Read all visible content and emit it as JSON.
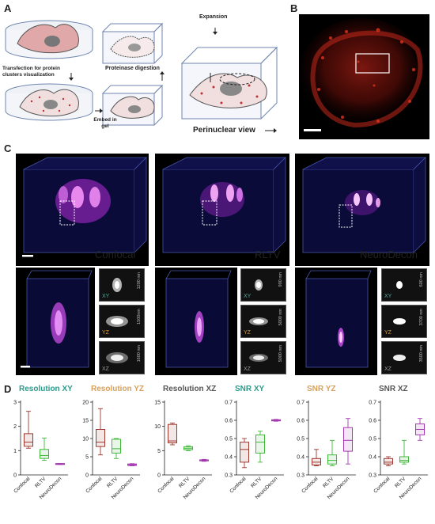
{
  "panel_a": {
    "letter": "A",
    "transfection_label": "Transfection for protein clusters visualization",
    "proteinase_label": "Proteinase digestion",
    "embed_label": "Embed in gel",
    "expansion_label": "Expansion",
    "perinuclear_label": "Perinuclear view"
  },
  "panel_b": {
    "letter": "B"
  },
  "panel_c": {
    "letter": "C",
    "methods": [
      {
        "name": "Confocal",
        "color": "#d9362c",
        "dims": [
          "1200 nm",
          "1500nm",
          "1600 nm"
        ]
      },
      {
        "name": "RLTV",
        "color": "#4ccf3d",
        "dims": [
          "900 nm",
          "5000 nm",
          "5000 nm"
        ]
      },
      {
        "name": "NeuroDecon",
        "color": "#d23ad8",
        "dims": [
          "600 nm",
          "3700 nm",
          "3500 nm"
        ]
      }
    ],
    "inset_tags": [
      "XY",
      "YZ",
      "XZ"
    ],
    "inset_tag_colors": [
      "#4fa89a",
      "#d99a3c",
      "#9a9a9a"
    ]
  },
  "panel_d": {
    "letter": "D"
  },
  "chart_data": [
    {
      "type": "box",
      "title": "Resolution XY",
      "title_color": "#2d9a8a",
      "categories": [
        "Confocal",
        "RLTV",
        "NeuroDecon"
      ],
      "colors": [
        "#a0372e",
        "#3fb83a",
        "#a43ab0"
      ],
      "ylim": [
        0,
        3
      ],
      "yticks": [
        0,
        1,
        2,
        3
      ],
      "boxes": [
        {
          "min": 1.1,
          "q1": 1.18,
          "median": 1.35,
          "q3": 1.7,
          "max": 2.62
        },
        {
          "min": 0.6,
          "q1": 0.68,
          "median": 0.8,
          "q3": 1.05,
          "max": 1.52
        },
        {
          "min": 0.43,
          "q1": 0.43,
          "median": 0.45,
          "q3": 0.47,
          "max": 0.47
        }
      ]
    },
    {
      "type": "box",
      "title": "Resolution YZ",
      "title_color": "#d9a05a",
      "categories": [
        "Confocal",
        "RLTV",
        "NeuroDecon"
      ],
      "colors": [
        "#a0372e",
        "#3fb83a",
        "#a43ab0"
      ],
      "ylim": [
        0,
        20
      ],
      "yticks": [
        0,
        5,
        10,
        15,
        20
      ],
      "boxes": [
        {
          "min": 5.5,
          "q1": 7.8,
          "median": 9.0,
          "q3": 12.5,
          "max": 18.2
        },
        {
          "min": 4.5,
          "q1": 6.0,
          "median": 7.2,
          "q3": 9.8,
          "max": 10.0
        },
        {
          "min": 2.5,
          "q1": 2.6,
          "median": 2.8,
          "q3": 3.0,
          "max": 3.1
        }
      ]
    },
    {
      "type": "box",
      "title": "Resolution XZ",
      "title_color": "#555555",
      "categories": [
        "Confocal",
        "RLTV",
        "NeuroDecon"
      ],
      "colors": [
        "#a0372e",
        "#3fb83a",
        "#a43ab0"
      ],
      "ylim": [
        0,
        15
      ],
      "yticks": [
        0,
        5,
        10,
        15
      ],
      "boxes": [
        {
          "min": 6.2,
          "q1": 6.6,
          "median": 7.0,
          "q3": 10.4,
          "max": 10.7
        },
        {
          "min": 5.0,
          "q1": 5.2,
          "median": 5.5,
          "q3": 5.8,
          "max": 6.0
        },
        {
          "min": 2.8,
          "q1": 2.9,
          "median": 3.0,
          "q3": 3.1,
          "max": 3.2
        }
      ]
    },
    {
      "type": "box",
      "title": "SNR XY",
      "title_color": "#2d9a8a",
      "categories": [
        "Confocal",
        "RLTV",
        "NeuroDecon"
      ],
      "colors": [
        "#a0372e",
        "#3fb83a",
        "#a43ab0"
      ],
      "ylim": [
        0.3,
        0.7
      ],
      "yticks": [
        0.3,
        0.4,
        0.5,
        0.6,
        0.7
      ],
      "boxes": [
        {
          "min": 0.34,
          "q1": 0.37,
          "median": 0.44,
          "q3": 0.48,
          "max": 0.5
        },
        {
          "min": 0.37,
          "q1": 0.42,
          "median": 0.48,
          "q3": 0.52,
          "max": 0.54
        },
        {
          "min": 0.595,
          "q1": 0.597,
          "median": 0.6,
          "q3": 0.603,
          "max": 0.605
        }
      ]
    },
    {
      "type": "box",
      "title": "SNR YZ",
      "title_color": "#d9a05a",
      "categories": [
        "Confocal",
        "RLTV",
        "NeuroDecon"
      ],
      "colors": [
        "#a0372e",
        "#3fb83a",
        "#a43ab0"
      ],
      "ylim": [
        0.3,
        0.7
      ],
      "yticks": [
        0.3,
        0.4,
        0.5,
        0.6,
        0.7
      ],
      "boxes": [
        {
          "min": 0.35,
          "q1": 0.355,
          "median": 0.37,
          "q3": 0.39,
          "max": 0.44
        },
        {
          "min": 0.35,
          "q1": 0.36,
          "median": 0.38,
          "q3": 0.41,
          "max": 0.49
        },
        {
          "min": 0.36,
          "q1": 0.43,
          "median": 0.49,
          "q3": 0.56,
          "max": 0.61
        }
      ]
    },
    {
      "type": "box",
      "title": "SNR XZ",
      "title_color": "#555555",
      "categories": [
        "Confocal",
        "RLTV",
        "NeuroDecon"
      ],
      "colors": [
        "#a0372e",
        "#3fb83a",
        "#a43ab0"
      ],
      "ylim": [
        0.3,
        0.7
      ],
      "yticks": [
        0.3,
        0.4,
        0.5,
        0.6,
        0.7
      ],
      "boxes": [
        {
          "min": 0.35,
          "q1": 0.36,
          "median": 0.37,
          "q3": 0.39,
          "max": 0.4
        },
        {
          "min": 0.36,
          "q1": 0.37,
          "median": 0.38,
          "q3": 0.4,
          "max": 0.49
        },
        {
          "min": 0.49,
          "q1": 0.52,
          "median": 0.55,
          "q3": 0.58,
          "max": 0.61
        }
      ]
    }
  ]
}
